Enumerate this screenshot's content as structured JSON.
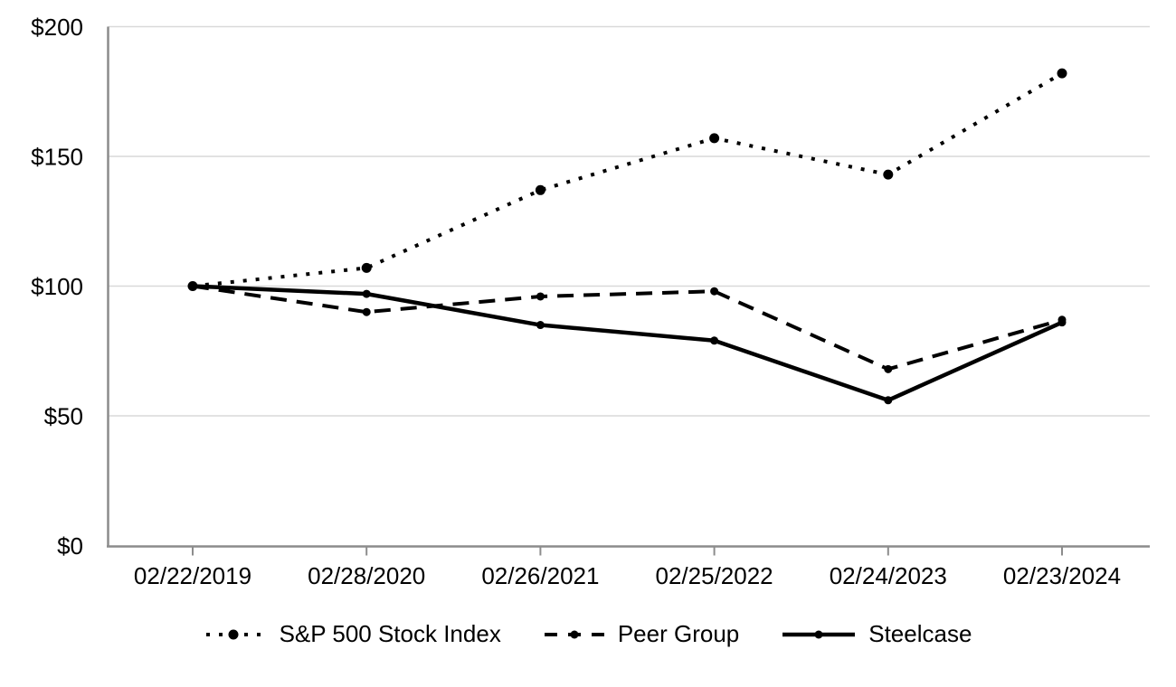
{
  "chart_data": {
    "type": "line",
    "title": "",
    "xlabel": "",
    "ylabel": "",
    "x": [
      "02/22/2019",
      "02/28/2020",
      "02/26/2021",
      "02/25/2022",
      "02/24/2023",
      "02/23/2024"
    ],
    "series": [
      {
        "name": "S&P 500 Stock Index",
        "style": "dotted",
        "values": [
          100,
          107,
          137,
          157,
          143,
          182
        ]
      },
      {
        "name": "Peer Group",
        "style": "dashed",
        "values": [
          100,
          90,
          96,
          98,
          68,
          87
        ]
      },
      {
        "name": "Steelcase",
        "style": "solid",
        "values": [
          100,
          97,
          85,
          79,
          56,
          86
        ]
      }
    ],
    "ylim": [
      0,
      200
    ],
    "yticks": [
      0,
      50,
      100,
      150,
      200
    ],
    "ytick_prefix": "$",
    "grid": "horizontal",
    "legend_position": "bottom",
    "colors": {
      "line": "#000000",
      "gridline": "#d9d9d9",
      "axis": "#8c8c8c",
      "text": "#000000",
      "background": "#ffffff"
    }
  }
}
